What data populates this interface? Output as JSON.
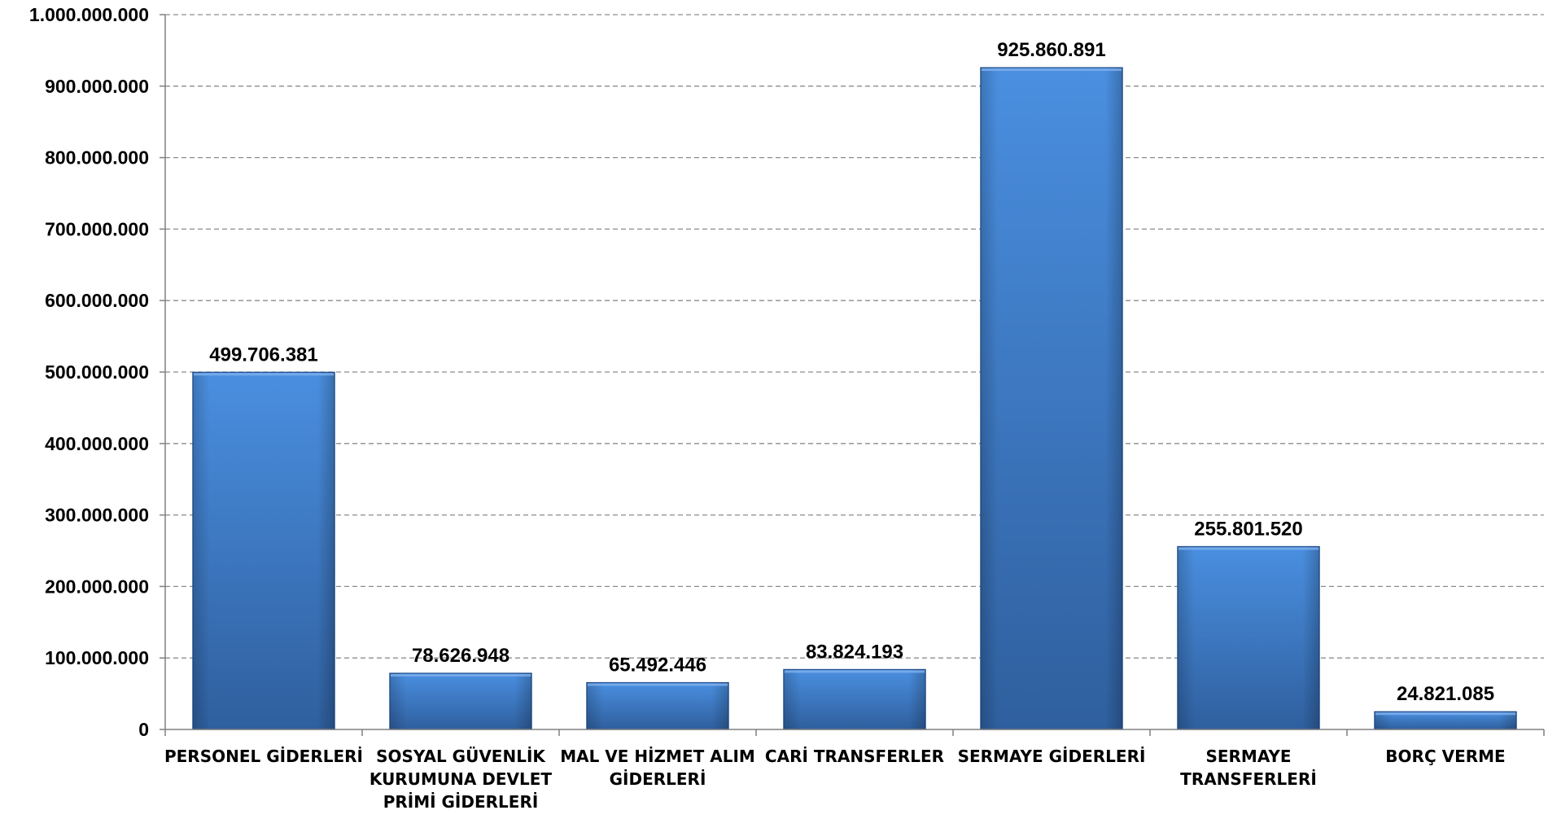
{
  "chart_data": {
    "type": "bar",
    "title": "",
    "xlabel": "",
    "ylabel": "",
    "categories": [
      [
        "PERSONEL GİDERLERİ"
      ],
      [
        "SOSYAL GÜVENLİK",
        "KURUMUNA DEVLET",
        "PRİMİ GİDERLERİ"
      ],
      [
        "MAL VE HİZMET ALIM",
        "GİDERLERİ"
      ],
      [
        "CARİ TRANSFERLER"
      ],
      [
        "SERMAYE GİDERLERİ"
      ],
      [
        "SERMAYE",
        "TRANSFERLERİ"
      ],
      [
        "BORÇ VERME"
      ]
    ],
    "values": [
      499706381,
      78626948,
      65492446,
      83824193,
      925860891,
      255801520,
      24821085
    ],
    "data_labels": [
      "499.706.381",
      "78.626.948",
      "65.492.446",
      "83.824.193",
      "925.860.891",
      "255.801.520",
      "24.821.085"
    ],
    "ylim": [
      0,
      1000000000
    ],
    "y_ticks": [
      {
        "value": 0,
        "label": "0"
      },
      {
        "value": 100000000,
        "label": "100.000.000"
      },
      {
        "value": 200000000,
        "label": "200.000.000"
      },
      {
        "value": 300000000,
        "label": "300.000.000"
      },
      {
        "value": 400000000,
        "label": "400.000.000"
      },
      {
        "value": 500000000,
        "label": "500.000.000"
      },
      {
        "value": 600000000,
        "label": "600.000.000"
      },
      {
        "value": 700000000,
        "label": "700.000.000"
      },
      {
        "value": 800000000,
        "label": "800.000.000"
      },
      {
        "value": 900000000,
        "label": "900.000.000"
      },
      {
        "value": 1000000000,
        "label": "1.000.000.000"
      }
    ],
    "grid": "horizontal-dashed",
    "legend": "none",
    "colors": {
      "bar_light": "#4a8fe0",
      "bar_dark": "#2f5f9e",
      "bar_border": "#1f4e8c",
      "grid": "#8c8c8c",
      "axis": "#808080"
    }
  }
}
